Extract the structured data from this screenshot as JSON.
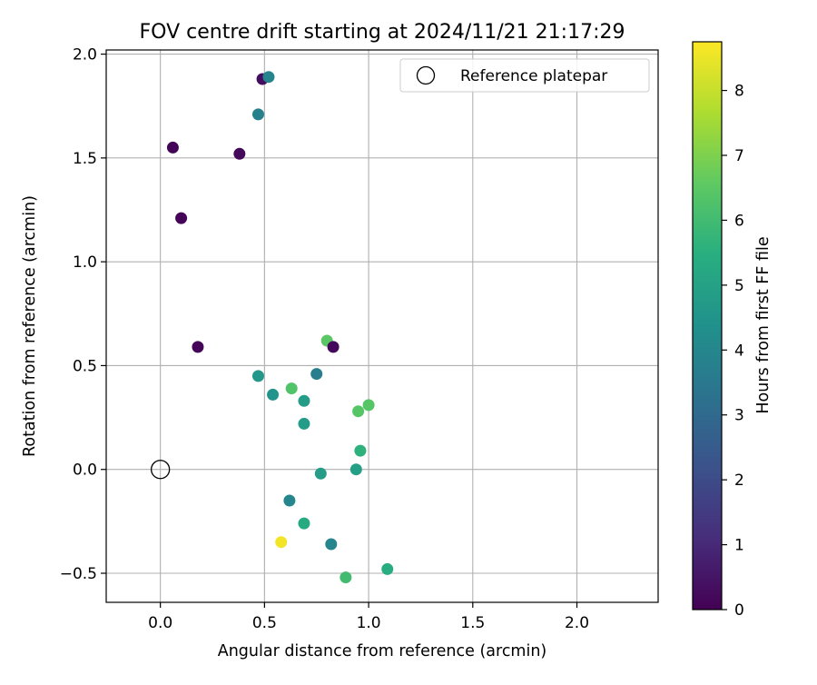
{
  "chart_data": {
    "type": "scatter",
    "title": "FOV centre drift starting at 2024/11/21 21:17:29",
    "xlabel": "Angular distance from reference (arcmin)",
    "ylabel": "Rotation from reference (arcmin)",
    "xlim": [
      -0.26,
      2.39
    ],
    "ylim": [
      -0.64,
      2.02
    ],
    "xticks": [
      0.0,
      0.5,
      1.0,
      1.5,
      2.0
    ],
    "xtick_labels": [
      "0.0",
      "0.5",
      "1.0",
      "1.5",
      "2.0"
    ],
    "yticks": [
      -0.5,
      0.0,
      0.5,
      1.0,
      1.5,
      2.0
    ],
    "ytick_labels": [
      "−0.5",
      "0.0",
      "0.5",
      "1.0",
      "1.5",
      "2.0"
    ],
    "grid": true,
    "legend": {
      "location": "top-right",
      "entries": [
        {
          "label": "Reference platepar",
          "marker": "open-circle"
        }
      ]
    },
    "reference_point": {
      "x": 0.0,
      "y": 0.0
    },
    "colorbar": {
      "label": "Hours from first FF file",
      "range": [
        0,
        8.75
      ],
      "ticks": [
        0,
        1,
        2,
        3,
        4,
        5,
        6,
        7,
        8
      ],
      "tick_labels": [
        "0",
        "1",
        "2",
        "3",
        "4",
        "5",
        "6",
        "7",
        "8"
      ],
      "colormap": "viridis"
    },
    "points": [
      {
        "x": 0.49,
        "y": 1.88,
        "hours": 0.3
      },
      {
        "x": 0.52,
        "y": 1.89,
        "hours": 3.9
      },
      {
        "x": 0.47,
        "y": 1.71,
        "hours": 3.8
      },
      {
        "x": 0.06,
        "y": 1.55,
        "hours": 0.1
      },
      {
        "x": 0.38,
        "y": 1.52,
        "hours": 0.2
      },
      {
        "x": 0.1,
        "y": 1.21,
        "hours": 0.1
      },
      {
        "x": 0.18,
        "y": 0.59,
        "hours": 0.1
      },
      {
        "x": 0.8,
        "y": 0.62,
        "hours": 6.5
      },
      {
        "x": 0.83,
        "y": 0.59,
        "hours": 0.2
      },
      {
        "x": 0.47,
        "y": 0.45,
        "hours": 4.6
      },
      {
        "x": 0.75,
        "y": 0.46,
        "hours": 3.7
      },
      {
        "x": 0.63,
        "y": 0.39,
        "hours": 6.3
      },
      {
        "x": 0.54,
        "y": 0.36,
        "hours": 4.5
      },
      {
        "x": 0.69,
        "y": 0.33,
        "hours": 4.8
      },
      {
        "x": 1.0,
        "y": 0.31,
        "hours": 6.4
      },
      {
        "x": 0.95,
        "y": 0.28,
        "hours": 6.4
      },
      {
        "x": 0.69,
        "y": 0.22,
        "hours": 4.8
      },
      {
        "x": 0.96,
        "y": 0.09,
        "hours": 5.6
      },
      {
        "x": 0.94,
        "y": 0.0,
        "hours": 4.9
      },
      {
        "x": 0.77,
        "y": -0.02,
        "hours": 4.8
      },
      {
        "x": 0.62,
        "y": -0.15,
        "hours": 4.0
      },
      {
        "x": 0.69,
        "y": -0.26,
        "hours": 5.3
      },
      {
        "x": 0.58,
        "y": -0.35,
        "hours": 8.6
      },
      {
        "x": 0.82,
        "y": -0.36,
        "hours": 3.9
      },
      {
        "x": 0.89,
        "y": -0.52,
        "hours": 6.0
      },
      {
        "x": 1.09,
        "y": -0.48,
        "hours": 5.4
      }
    ]
  }
}
